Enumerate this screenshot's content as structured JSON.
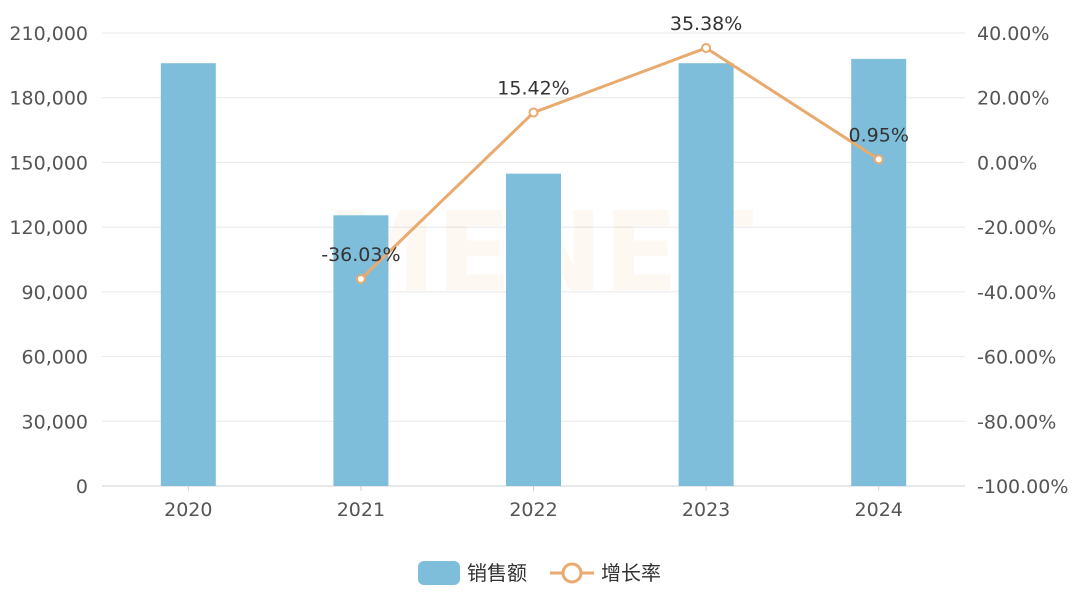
{
  "watermark": "MENET",
  "chart_data": {
    "type": "bar",
    "categories": [
      "2020",
      "2021",
      "2022",
      "2023",
      "2024"
    ],
    "series": [
      {
        "name": "销售额",
        "type": "bar",
        "axis": "left",
        "color": "#7fbedb",
        "values": [
          196000,
          125500,
          144800,
          196000,
          198000
        ]
      },
      {
        "name": "增长率",
        "type": "line",
        "axis": "right",
        "color": "#e8aa6e",
        "values": [
          null,
          -36.03,
          15.42,
          35.38,
          0.95
        ],
        "data_labels": [
          "",
          "-36.03%",
          "15.42%",
          "35.38%",
          "0.95%"
        ]
      }
    ],
    "y_left": {
      "ylim": [
        0,
        210000
      ],
      "ticks": [
        0,
        30000,
        60000,
        90000,
        120000,
        150000,
        180000,
        210000
      ],
      "tick_labels": [
        "0",
        "30,000",
        "60,000",
        "90,000",
        "120,000",
        "150,000",
        "180,000",
        "210,000"
      ]
    },
    "y_right": {
      "ylim": [
        -100,
        40
      ],
      "ticks": [
        -100,
        -80,
        -60,
        -40,
        -20,
        0,
        20,
        40
      ],
      "tick_labels": [
        "-100.00%",
        "-80.00%",
        "-60.00%",
        "-40.00%",
        "-20.00%",
        "0.00%",
        "20.00%",
        "40.00%"
      ]
    },
    "grid": true,
    "legend": {
      "position": "bottom-center",
      "items": [
        "销售额",
        "增长率"
      ]
    },
    "title": "",
    "xlabel": "",
    "ylabel": ""
  }
}
